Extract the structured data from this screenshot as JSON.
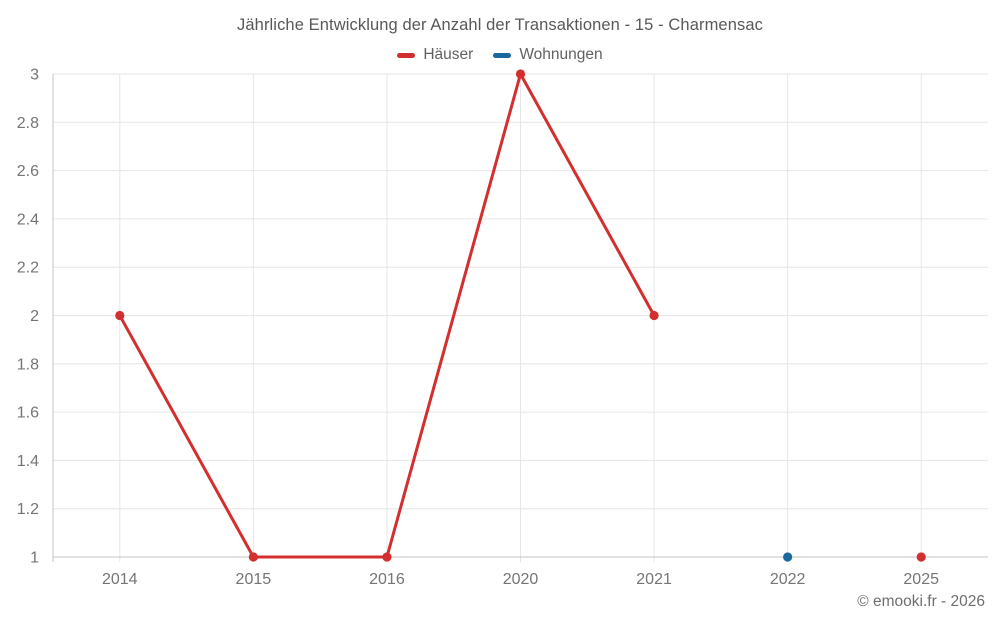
{
  "chart": {
    "title": "Jährliche Entwicklung der Anzahl der Transaktionen - 15 - Charmensac",
    "copyright": "© emooki.fr - 2026"
  },
  "chart_data": {
    "type": "line",
    "title": "Jährliche Entwicklung der Anzahl der Transaktionen - 15 - Charmensac",
    "categories": [
      "2014",
      "2015",
      "2016",
      "2020",
      "2021",
      "2022",
      "2025"
    ],
    "series": [
      {
        "name": "Häuser",
        "color": "#d32f2f",
        "values": [
          2,
          1,
          1,
          3,
          2,
          null,
          1
        ]
      },
      {
        "name": "Wohnungen",
        "color": "#1a699e",
        "values": [
          null,
          null,
          null,
          null,
          null,
          1,
          null
        ]
      }
    ],
    "xlabel": "",
    "ylabel": "",
    "ylim": [
      1,
      3
    ],
    "yticks": [
      1,
      1.2,
      1.4,
      1.6,
      1.8,
      2,
      2.2,
      2.4,
      2.6,
      2.8,
      3
    ],
    "grid": true,
    "legend_position": "top",
    "colors": {
      "gridline": "#e6e6e6",
      "axis": "#c4c4c4",
      "tick_label": "#757575"
    }
  }
}
